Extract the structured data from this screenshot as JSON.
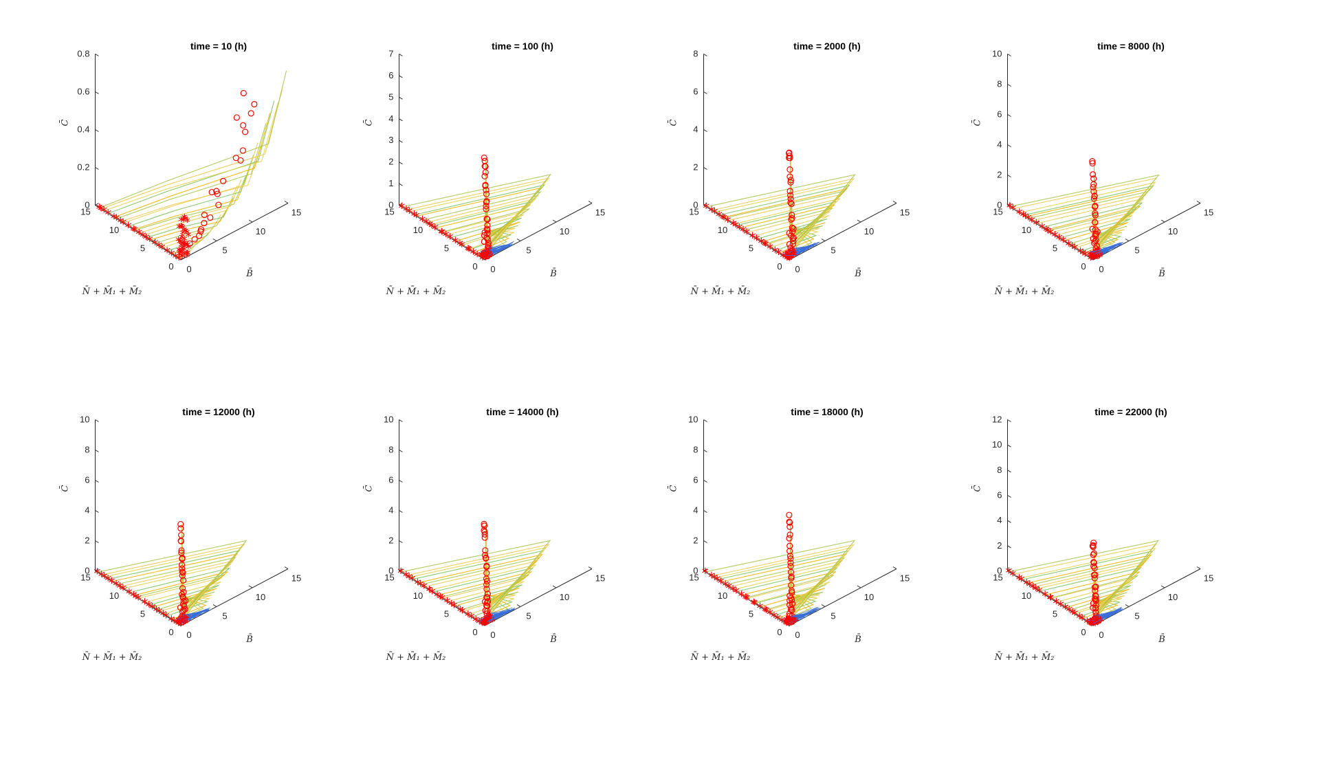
{
  "figure": {
    "type": "3d-line-grid",
    "rows": 2,
    "cols": 4
  },
  "chart_data": [
    {
      "type": "line3d",
      "title": "time = 10 (h)",
      "xlabel": "N̄ + M̄₁ + M̄₂",
      "ylabel": "B̄",
      "zlabel": "C̄",
      "xlim": [
        0,
        15
      ],
      "ylim": [
        0,
        15
      ],
      "zlim": [
        0,
        0.8
      ],
      "xticks": [
        "0",
        "5",
        "10",
        "15"
      ],
      "yticks": [
        "0",
        "5",
        "10",
        "15"
      ],
      "zticks": [
        "0",
        "0.2",
        "0.4",
        "0.6",
        "0.8"
      ],
      "pattern": "early",
      "series_colors": [
        "#f2c94c",
        "#a8c64a",
        "#f4b400",
        "#7dc462",
        "#e8d24a"
      ],
      "star_color": "#ff0000",
      "circle_color": "#ff0000",
      "base_color": "#3a6fd8"
    },
    {
      "type": "line3d",
      "title": "time = 100 (h)",
      "xlabel": "N̄ + M̄₁ + M̄₂",
      "ylabel": "B̄",
      "zlabel": "C̄",
      "xlim": [
        0,
        15
      ],
      "ylim": [
        0,
        15
      ],
      "zlim": [
        0,
        7
      ],
      "xticks": [
        "0",
        "5",
        "10",
        "15"
      ],
      "yticks": [
        "0",
        "5",
        "10",
        "15"
      ],
      "zticks": [
        "0",
        "1",
        "2",
        "3",
        "4",
        "5",
        "6",
        "7"
      ],
      "pattern": "column",
      "peak": 4.8,
      "series_colors": [
        "#f2c94c",
        "#a8c64a",
        "#f4b400",
        "#7dc462",
        "#e8d24a"
      ],
      "star_color": "#ff0000",
      "circle_color": "#ff0000",
      "base_color": "#3a6fd8"
    },
    {
      "type": "line3d",
      "title": "time = 2000 (h)",
      "xlabel": "N̄ + M̄₁ + M̄₂",
      "ylabel": "B̄",
      "zlabel": "C̄",
      "xlim": [
        0,
        15
      ],
      "ylim": [
        0,
        15
      ],
      "zlim": [
        0,
        8
      ],
      "xticks": [
        "0",
        "5",
        "10",
        "15"
      ],
      "yticks": [
        "0",
        "5",
        "10",
        "15"
      ],
      "zticks": [
        "0",
        "2",
        "4",
        "6",
        "8"
      ],
      "pattern": "spread",
      "peak": 6.1,
      "series_colors": [
        "#f2c94c",
        "#a8c64a",
        "#f4b400",
        "#7dc462",
        "#e8d24a"
      ],
      "star_color": "#ff0000",
      "circle_color": "#ff0000",
      "base_color": "#3a6fd8"
    },
    {
      "type": "line3d",
      "title": "time = 8000 (h)",
      "xlabel": "N̄ + M̄₁ + M̄₂",
      "ylabel": "B̄",
      "zlabel": "C̄",
      "xlim": [
        0,
        15
      ],
      "ylim": [
        0,
        15
      ],
      "zlim": [
        0,
        10
      ],
      "xticks": [
        "0",
        "5",
        "10",
        "15"
      ],
      "yticks": [
        "0",
        "5",
        "10",
        "15"
      ],
      "zticks": [
        "0",
        "2",
        "4",
        "6",
        "8",
        "10"
      ],
      "pattern": "spread",
      "peak": 6.2,
      "series_colors": [
        "#f2c94c",
        "#a8c64a",
        "#f4b400",
        "#7dc462",
        "#e8d24a"
      ],
      "star_color": "#ff0000",
      "circle_color": "#ff0000",
      "base_color": "#3a6fd8"
    },
    {
      "type": "line3d",
      "title": "time = 12000 (h)",
      "xlabel": "N̄ + M̄₁ + M̄₂",
      "ylabel": "B̄",
      "zlabel": "C̄",
      "xlim": [
        0,
        15
      ],
      "ylim": [
        0,
        15
      ],
      "zlim": [
        0,
        10
      ],
      "xticks": [
        "0",
        "5",
        "10",
        "15"
      ],
      "yticks": [
        "0",
        "5",
        "10",
        "15"
      ],
      "zticks": [
        "0",
        "2",
        "4",
        "6",
        "8",
        "10"
      ],
      "pattern": "spread",
      "peak": 6.6,
      "series_colors": [
        "#f2c94c",
        "#a8c64a",
        "#f4b400",
        "#7dc462",
        "#e8d24a"
      ],
      "star_color": "#ff0000",
      "circle_color": "#ff0000",
      "base_color": "#3a6fd8"
    },
    {
      "type": "line3d",
      "title": "time = 14000 (h)",
      "xlabel": "N̄ + M̄₁ + M̄₂",
      "ylabel": "B̄",
      "zlabel": "C̄",
      "xlim": [
        0,
        15
      ],
      "ylim": [
        0,
        15
      ],
      "zlim": [
        0,
        10
      ],
      "xticks": [
        "0",
        "5",
        "10",
        "15"
      ],
      "yticks": [
        "0",
        "5",
        "10",
        "15"
      ],
      "zticks": [
        "0",
        "2",
        "4",
        "6",
        "8",
        "10"
      ],
      "pattern": "spread",
      "peak": 6.8,
      "series_colors": [
        "#f2c94c",
        "#a8c64a",
        "#f4b400",
        "#7dc462",
        "#e8d24a"
      ],
      "star_color": "#ff0000",
      "circle_color": "#ff0000",
      "base_color": "#3a6fd8"
    },
    {
      "type": "line3d",
      "title": "time = 18000 (h)",
      "xlabel": "N̄ + M̄₁ + M̄₂",
      "ylabel": "B̄",
      "zlabel": "C̄",
      "xlim": [
        0,
        15
      ],
      "ylim": [
        0,
        15
      ],
      "zlim": [
        0,
        10
      ],
      "xticks": [
        "0",
        "5",
        "10",
        "15"
      ],
      "yticks": [
        "0",
        "5",
        "10",
        "15"
      ],
      "zticks": [
        "0",
        "2",
        "4",
        "6",
        "8",
        "10"
      ],
      "pattern": "spread",
      "peak": 7.2,
      "series_colors": [
        "#f2c94c",
        "#a8c64a",
        "#f4b400",
        "#7dc462",
        "#e8d24a"
      ],
      "star_color": "#ff0000",
      "circle_color": "#ff0000",
      "base_color": "#3a6fd8"
    },
    {
      "type": "line3d",
      "title": "time = 22000 (h)",
      "xlabel": "N̄ + M̄₁ + M̄₂",
      "ylabel": "B̄",
      "zlabel": "C̄",
      "xlim": [
        0,
        15
      ],
      "ylim": [
        0,
        15
      ],
      "zlim": [
        0,
        12
      ],
      "xticks": [
        "0",
        "5",
        "10",
        "15"
      ],
      "yticks": [
        "0",
        "5",
        "10",
        "15"
      ],
      "zticks": [
        "0",
        "2",
        "4",
        "6",
        "8",
        "10",
        "12"
      ],
      "pattern": "spread",
      "peak": 6.8,
      "series_colors": [
        "#f2c94c",
        "#a8c64a",
        "#f4b400",
        "#7dc462",
        "#e8d24a"
      ],
      "star_color": "#ff0000",
      "circle_color": "#ff0000",
      "base_color": "#3a6fd8"
    }
  ]
}
